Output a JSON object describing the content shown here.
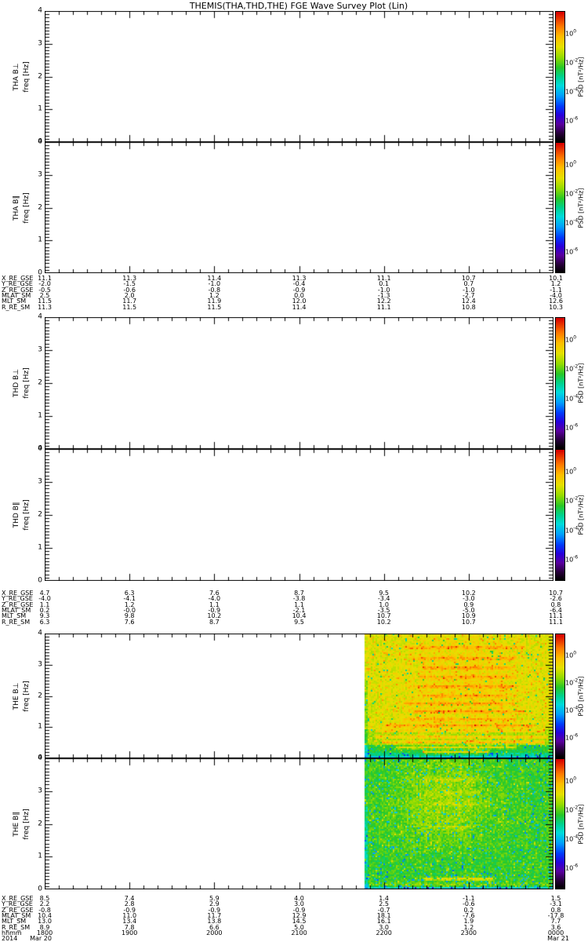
{
  "title": "THEMIS(THA,THD,THE) FGE Wave Survey Plot (Lin)",
  "chart_data": {
    "type": "heatmap",
    "title": "THEMIS(THA,THD,THE) FGE Wave Survey Plot (Lin)",
    "time_axis": {
      "label": "hhmm",
      "year": "2014",
      "date_left": "Mar 20",
      "date_right": "Mar 21",
      "ticks": [
        "1800",
        "1900",
        "2000",
        "2100",
        "2200",
        "2300",
        "0000"
      ],
      "minor_per_major": 6
    },
    "freq_axis": {
      "label": "freq [Hz]",
      "range": [
        0,
        4
      ],
      "ticks": [
        "0",
        "1",
        "2",
        "3",
        "4"
      ],
      "minor_step": 0.1
    },
    "colorbar": {
      "label": "PSD [nT²/Hz]",
      "tick_exponents": [
        "0",
        "-2",
        "-4",
        "-6"
      ],
      "tick_fracs_from_top": [
        0.167,
        0.389,
        0.611,
        0.833
      ],
      "scale": "rainbow, red=high to black=low"
    },
    "panels": [
      {
        "name": "THA B⊥",
        "slug": "tha-bperp",
        "has_data": false
      },
      {
        "name": "THA B∥",
        "slug": "tha-bpar",
        "has_data": false
      },
      {
        "name": "THD B⊥",
        "slug": "thd-bperp",
        "has_data": false
      },
      {
        "name": "THD B∥",
        "slug": "thd-bpar",
        "has_data": false
      },
      {
        "name": "THE B⊥",
        "slug": "the-bperp",
        "has_data": true,
        "spectrogram": {
          "start_frac": 0.628,
          "seed": 7,
          "noise": 0.045,
          "dark_chance": 0.02,
          "hot_chance": 0.07,
          "bands": [
            {
              "f0": 0.0,
              "f1": 0.06,
              "v": 0.44
            },
            {
              "f0": 0.06,
              "f1": 0.16,
              "v": 0.5
            },
            {
              "f0": 0.16,
              "f1": 0.45,
              "v": 0.56
            },
            {
              "f0": 0.45,
              "f1": 0.95,
              "v": 0.66
            },
            {
              "f0": 0.95,
              "f1": 4.01,
              "v": 0.72
            }
          ],
          "blob": {
            "amp": 0.035,
            "t": 0.55,
            "tw": 0.32,
            "f": 2.6,
            "fw": 1.6,
            "fmin": 0.9
          },
          "streaks": [
            [
              3.55,
              0.1,
              0.2,
              0.85
            ],
            [
              3.2,
              0.09,
              0.25,
              0.8
            ],
            [
              2.9,
              0.1,
              0.3,
              0.78
            ],
            [
              2.6,
              0.09,
              0.28,
              0.8
            ],
            [
              2.3,
              0.11,
              0.25,
              0.8
            ],
            [
              2.0,
              0.09,
              0.3,
              0.75
            ],
            [
              1.75,
              0.1,
              0.2,
              0.8
            ],
            [
              1.5,
              0.12,
              0.25,
              0.85
            ],
            [
              1.25,
              0.1,
              0.2,
              0.8
            ],
            [
              1.05,
              0.11,
              0.1,
              0.9
            ],
            [
              0.88,
              0.13,
              0.05,
              0.95
            ],
            [
              0.68,
              0.13,
              0.05,
              0.97
            ],
            [
              0.52,
              0.15,
              0.08,
              0.95
            ],
            [
              0.35,
              0.17,
              0.15,
              0.8
            ],
            [
              0.2,
              0.19,
              0.3,
              0.65
            ]
          ]
        }
      },
      {
        "name": "THE B∥",
        "slug": "the-bpar",
        "has_data": true,
        "spectrogram": {
          "start_frac": 0.628,
          "seed": 13,
          "noise": 0.05,
          "dark_chance": 0.05,
          "hot_chance": 0.04,
          "bands": [
            {
              "f0": 0.0,
              "f1": 0.07,
              "v": 0.42
            },
            {
              "f0": 0.07,
              "f1": 0.15,
              "v": 0.5
            },
            {
              "f0": 0.15,
              "f1": 4.01,
              "v": 0.575
            }
          ],
          "blob": {
            "amp": 0.075,
            "t": 0.42,
            "tw": 0.26,
            "f": 2.7,
            "fw": 1.5,
            "fmin": 1.1
          },
          "streaks": [
            [
              0.32,
              0.17,
              0.3,
              0.68
            ],
            [
              0.13,
              0.13,
              0.02,
              0.98
            ],
            [
              3.35,
              0.07,
              0.3,
              0.62
            ],
            [
              2.95,
              0.05,
              0.32,
              0.6
            ],
            [
              2.6,
              0.05,
              0.35,
              0.6
            ],
            [
              1.9,
              0.05,
              0.3,
              0.55
            ]
          ]
        }
      }
    ],
    "ephemeris_blocks": [
      {
        "after_panel": "THA",
        "rows": [
          {
            "label": "X_RE_GSE",
            "values": [
              "11.1",
              "11.3",
              "11.4",
              "11.3",
              "11.1",
              "10.7",
              "10.1"
            ]
          },
          {
            "label": "Y_RE_GSE",
            "values": [
              "-2.0",
              "-1.5",
              "-1.0",
              "-0.4",
              "0.1",
              "0.7",
              "1.2"
            ]
          },
          {
            "label": "Z_RE_GSE",
            "values": [
              "-0.5",
              "-0.6",
              "-0.8",
              "-0.9",
              "-1.0",
              "-1.0",
              "-1.1"
            ]
          },
          {
            "label": "MLAT_SM",
            "values": [
              "2.5",
              "2.0",
              "1.2",
              "0.0",
              "-1.3",
              "-2.7",
              "-4.0"
            ]
          },
          {
            "label": "MLT_SM",
            "values": [
              "11.5",
              "11.7",
              "11.9",
              "12.0",
              "12.2",
              "12.4",
              "12.6"
            ]
          },
          {
            "label": "R_RE_SM",
            "values": [
              "11.3",
              "11.5",
              "11.5",
              "11.4",
              "11.1",
              "10.8",
              "10.3"
            ]
          }
        ]
      },
      {
        "after_panel": "THD",
        "rows": [
          {
            "label": "X_RE_GSE",
            "values": [
              "4.7",
              "6.3",
              "7.6",
              "8.7",
              "9.5",
              "10.2",
              "10.7"
            ]
          },
          {
            "label": "Y_RE_GSE",
            "values": [
              "-4.0",
              "-4.1",
              "-4.0",
              "-3.8",
              "-3.4",
              "-3.0",
              "-2.6"
            ]
          },
          {
            "label": "Z_RE_GSE",
            "values": [
              "1.1",
              "1.2",
              "1.1",
              "1.1",
              "1.0",
              "0.9",
              "0.8"
            ]
          },
          {
            "label": "MLAT_SM",
            "values": [
              "0.2",
              "-0.0",
              "-0.9",
              "-2.1",
              "-3.5",
              "-5.0",
              "-6.4"
            ]
          },
          {
            "label": "MLT_SM",
            "values": [
              "9.3",
              "9.8",
              "10.2",
              "10.4",
              "10.7",
              "10.9",
              "11.1"
            ]
          },
          {
            "label": "R_RE_SM",
            "values": [
              "6.3",
              "7.6",
              "8.7",
              "9.5",
              "10.2",
              "10.7",
              "11.1"
            ]
          }
        ]
      },
      {
        "after_panel": "THE",
        "rows": [
          {
            "label": "X_RE_GSE",
            "values": [
              "8.5",
              "7.4",
              "5.9",
              "4.0",
              "1.4",
              "-1.1",
              "1.5"
            ]
          },
          {
            "label": "Y_RE_GSE",
            "values": [
              "2.2",
              "2.8",
              "2.9",
              "3.0",
              "2.5",
              "-0.6",
              "-3.1"
            ]
          },
          {
            "label": "Z_RE_GSE",
            "values": [
              "-0.8",
              "-0.9",
              "-0.9",
              "-0.9",
              "-0.7",
              "0.2",
              "0.8"
            ]
          },
          {
            "label": "MLAT_SM",
            "values": [
              "10.4",
              "11.0",
              "11.7",
              "12.9",
              "18.1",
              "-7.6",
              "-17.8"
            ]
          },
          {
            "label": "MLT_SM",
            "values": [
              "13.0",
              "13.4",
              "13.8",
              "14.5",
              "16.1",
              "1.9",
              "7.7"
            ]
          },
          {
            "label": "R_RE_SM",
            "values": [
              "8.9",
              "7.8",
              "6.6",
              "5.0",
              "3.0",
              "1.2",
              "3.6"
            ]
          }
        ],
        "time_row": {
          "label": "hhmm",
          "values": [
            "1800",
            "1900",
            "2000",
            "2100",
            "2200",
            "2300",
            "0000"
          ]
        },
        "date_row": {
          "year": "2014",
          "left_date": "Mar 20",
          "right_date": "Mar 21"
        }
      }
    ]
  }
}
